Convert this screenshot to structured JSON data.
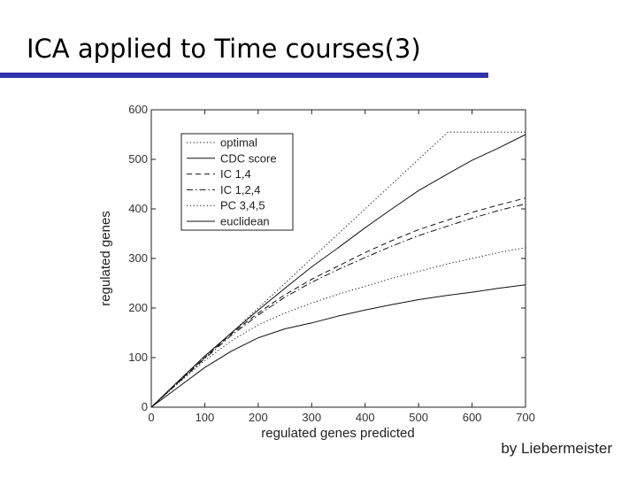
{
  "slide": {
    "title": "ICA applied to Time courses(3)",
    "credit": "by Liebermeister",
    "accent_color": "#3333aa"
  },
  "chart_data": {
    "type": "line",
    "xlabel": "regulated genes predicted",
    "ylabel": "regulated genes",
    "xlim": [
      0,
      700
    ],
    "ylim": [
      0,
      600
    ],
    "xticks": [
      0,
      100,
      200,
      300,
      400,
      500,
      600,
      700
    ],
    "yticks": [
      0,
      100,
      200,
      300,
      400,
      500,
      600
    ],
    "grid": false,
    "legend_position": "top-left",
    "series": [
      {
        "name": "optimal",
        "style": "dotted",
        "x": [
          0,
          100,
          200,
          300,
          400,
          500,
          555,
          600,
          700
        ],
        "y": [
          0,
          100,
          200,
          300,
          400,
          500,
          555,
          555,
          555
        ]
      },
      {
        "name": "CDC score",
        "style": "solid",
        "x": [
          0,
          50,
          100,
          150,
          200,
          250,
          300,
          350,
          400,
          450,
          500,
          550,
          600,
          650,
          700
        ],
        "y": [
          0,
          52,
          103,
          150,
          196,
          240,
          283,
          322,
          362,
          400,
          437,
          468,
          498,
          523,
          550
        ]
      },
      {
        "name": "IC 1,4",
        "style": "dashed",
        "x": [
          0,
          50,
          100,
          150,
          200,
          250,
          300,
          350,
          400,
          450,
          500,
          550,
          600,
          650,
          700
        ],
        "y": [
          0,
          50,
          100,
          148,
          190,
          227,
          258,
          285,
          312,
          336,
          358,
          376,
          393,
          408,
          422
        ]
      },
      {
        "name": "IC 1,2,4",
        "style": "dashdot",
        "x": [
          0,
          50,
          100,
          150,
          200,
          250,
          300,
          350,
          400,
          450,
          500,
          550,
          600,
          650,
          700
        ],
        "y": [
          0,
          49,
          98,
          145,
          186,
          222,
          252,
          278,
          302,
          325,
          346,
          364,
          381,
          397,
          410
        ]
      },
      {
        "name": "PC 3,4,5",
        "style": "dotted",
        "x": [
          0,
          50,
          100,
          150,
          200,
          250,
          300,
          350,
          400,
          450,
          500,
          550,
          600,
          650,
          700
        ],
        "y": [
          0,
          48,
          94,
          134,
          166,
          190,
          210,
          228,
          244,
          260,
          274,
          288,
          300,
          312,
          322
        ]
      },
      {
        "name": "euclidean",
        "style": "solid",
        "x": [
          0,
          50,
          100,
          150,
          200,
          250,
          300,
          350,
          400,
          450,
          500,
          550,
          600,
          650,
          700
        ],
        "y": [
          0,
          40,
          80,
          113,
          140,
          158,
          170,
          184,
          196,
          207,
          217,
          225,
          232,
          240,
          247
        ]
      }
    ]
  }
}
